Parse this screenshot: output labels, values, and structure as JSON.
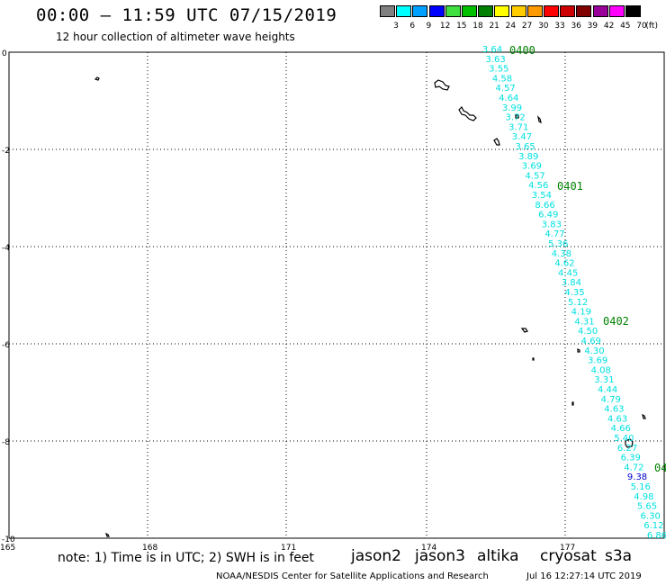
{
  "header": {
    "title": "00:00 – 11:59 UTC 07/15/2019",
    "subtitle": "12 hour collection of altimeter wave heights"
  },
  "legend": {
    "unit_label": "(ft)",
    "items": [
      {
        "label": "3",
        "color": "#808080"
      },
      {
        "label": "6",
        "color": "#00ffff"
      },
      {
        "label": "9",
        "color": "#00a0ff"
      },
      {
        "label": "12",
        "color": "#0000ff"
      },
      {
        "label": "15",
        "color": "#40e040"
      },
      {
        "label": "18",
        "color": "#00c000"
      },
      {
        "label": "21",
        "color": "#008000"
      },
      {
        "label": "24",
        "color": "#ffff00"
      },
      {
        "label": "27",
        "color": "#ffcc00"
      },
      {
        "label": "30",
        "color": "#ff9900"
      },
      {
        "label": "33",
        "color": "#ff0000"
      },
      {
        "label": "36",
        "color": "#cc0000"
      },
      {
        "label": "39",
        "color": "#800000"
      },
      {
        "label": "42",
        "color": "#990099"
      },
      {
        "label": "45",
        "color": "#ff00ff"
      },
      {
        "label": "70",
        "color": "#000000"
      }
    ]
  },
  "axes": {
    "x_ticks": [
      "165",
      "168",
      "171",
      "174",
      "177"
    ],
    "y_ticks": [
      "0",
      "-2",
      "-4",
      "-6",
      "-8",
      "-10"
    ]
  },
  "track": {
    "color": "#00e0e0",
    "values": [
      "3.64",
      "3.63",
      "3.55",
      "4.58",
      "4.57",
      "4.64",
      "3.99",
      "3.72",
      "3.71",
      "3.47",
      "3.65",
      "3.89",
      "3.69",
      "4.57",
      "4.56",
      "3.54",
      "8.66",
      "6.49",
      "3.83",
      "4.77",
      "5.36",
      "4.38",
      "4.62",
      "4.45",
      "3.84",
      "4.35",
      "5.12",
      "4.19",
      "4.31",
      "4.50",
      "4.69",
      "4.30",
      "3.69",
      "4.08",
      "3.31",
      "4.44",
      "4.79",
      "4.63",
      "4.63",
      "4.66",
      "5.40",
      "6.27",
      "6.39",
      "4.72",
      "9.38",
      "5.16",
      "4.98",
      "5.65",
      "6.30",
      "6.12",
      "6.86"
    ],
    "highlight_index": 44,
    "highlight_color": "#0000cc",
    "time_labels": [
      "0400",
      "0401",
      "0402",
      "04"
    ],
    "time_color": "#008000"
  },
  "footer": {
    "note": "note: 1) Time is in UTC; 2) SWH is in feet",
    "satellites": [
      {
        "name": "jason2",
        "color": "#0000ff"
      },
      {
        "name": "jason3",
        "color": "#00aa00"
      },
      {
        "name": "altika",
        "color": "#ff9900"
      },
      {
        "name": "cryosat",
        "color": "#ff0000"
      },
      {
        "name": "s3a",
        "color": "#aa0000"
      }
    ],
    "credit": "NOAA/NESDIS Center for Satellite Applications and Research",
    "timestamp": "Jul 16 12:27:14 UTC 2019"
  }
}
